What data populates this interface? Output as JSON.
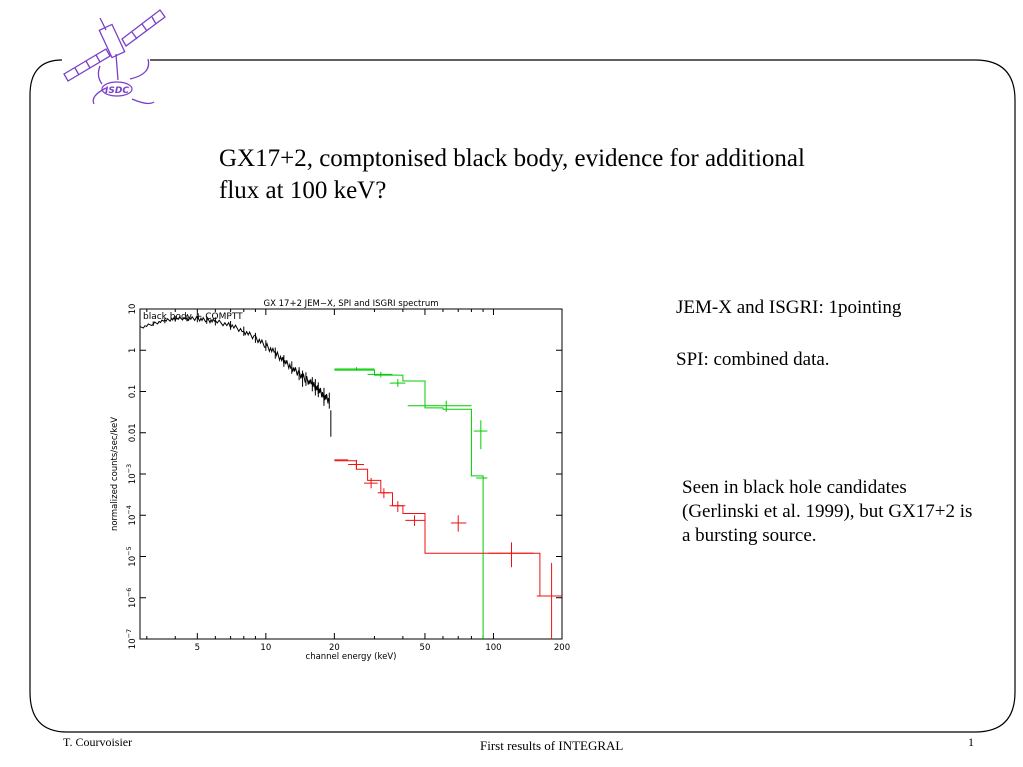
{
  "logo": {
    "label": "ISDC",
    "icon": "satellite-icon"
  },
  "slide": {
    "title": "GX17+2, comptonised black body, evidence for additional flux at 100 keV?",
    "notes": [
      "JEM-X and ISGRI: 1pointing",
      "SPI: combined data."
    ],
    "comment": "Seen in black hole candidates (Gerlinski et al. 1999), but GX17+2 is a bursting source."
  },
  "footer": {
    "author": "T. Courvoisier",
    "center": "First results of INTEGRAL",
    "page": "1"
  },
  "chart_data": {
    "type": "line",
    "title": "GX 17+2 JEM−X, SPI and ISGRI spectrum",
    "annotation": "black body + COMPTT",
    "xlabel": "channel energy (keV)",
    "ylabel": "normalized counts/sec/keV",
    "xscale": "log",
    "yscale": "log",
    "xlim": [
      2.8,
      200
    ],
    "ylim": [
      1e-07,
      10
    ],
    "x_ticks": [
      5,
      10,
      20,
      50,
      100,
      200
    ],
    "x_tick_labels": [
      "5",
      "10",
      "20",
      "50",
      "100",
      "200"
    ],
    "y_ticks": [
      10,
      1,
      0.1,
      0.01,
      0.001,
      0.0001,
      1e-05,
      1e-06,
      1e-07
    ],
    "y_tick_labels": [
      {
        "base": "10",
        "exp": ""
      },
      {
        "base": "1",
        "exp": ""
      },
      {
        "base": "0.1",
        "exp": ""
      },
      {
        "base": "0.01",
        "exp": ""
      },
      {
        "base": "10",
        "exp": "−3"
      },
      {
        "base": "10",
        "exp": "−4"
      },
      {
        "base": "10",
        "exp": "−5"
      },
      {
        "base": "10",
        "exp": "−6"
      },
      {
        "base": "10",
        "exp": "−7"
      }
    ],
    "series": [
      {
        "color": "#000000",
        "style": "data",
        "x": [
          2.8,
          3.2,
          3.6,
          4.0,
          4.5,
          5.0,
          5.5,
          6.0,
          7.0,
          8.0,
          9.0,
          10.0,
          11.0,
          12.0,
          13.0,
          14.0,
          15.0,
          16.0,
          17.0,
          18.0,
          19.0
        ],
        "y": [
          3.5,
          4.4,
          5.2,
          5.8,
          6.0,
          5.8,
          5.4,
          5.0,
          4.0,
          2.9,
          2.0,
          1.3,
          0.85,
          0.55,
          0.38,
          0.27,
          0.2,
          0.15,
          0.11,
          0.08,
          0.06
        ],
        "error_points": [
          {
            "x": 14.5,
            "y": 0.23,
            "dy": [
              0.13,
              0.32
            ]
          },
          {
            "x": 16.5,
            "y": 0.13,
            "dy": [
              0.08,
              0.2
            ]
          },
          {
            "x": 18.0,
            "y": 0.07,
            "dy": [
              0.045,
              0.1
            ]
          },
          {
            "x": 19.3,
            "y": 0.0175,
            "dy": [
              0.008,
              0.035
            ]
          }
        ]
      },
      {
        "color": "#00cc00",
        "style": "step",
        "step_x": [
          20,
          30,
          40,
          50,
          60,
          80,
          85,
          90
        ],
        "step_y": [
          0.33,
          0.25,
          0.18,
          0.04,
          0.037,
          0.0009,
          0.0009,
          1e-07
        ],
        "error_points": [
          {
            "x": 25,
            "y": 0.35,
            "dx": [
              20,
              30
            ],
            "dy": [
              0.32,
              0.39
            ]
          },
          {
            "x": 32,
            "y": 0.26,
            "dx": [
              28,
              36
            ],
            "dy": [
              0.22,
              0.3
            ]
          },
          {
            "x": 38,
            "y": 0.16,
            "dx": [
              35,
              41
            ],
            "dy": [
              0.13,
              0.2
            ]
          },
          {
            "x": 62,
            "y": 0.045,
            "dx": [
              42,
              80
            ],
            "dy": [
              0.032,
              0.06
            ]
          },
          {
            "x": 88,
            "y": 0.011,
            "dx": [
              82,
              94
            ],
            "dy": [
              0.004,
              0.02
            ]
          },
          {
            "x": 88,
            "y": 0.0008,
            "dx": [
              84,
              94
            ]
          }
        ]
      },
      {
        "color": "#ee1111",
        "style": "step",
        "step_x": [
          20,
          25,
          28,
          32,
          36,
          40,
          50,
          90,
          92,
          130,
          160,
          200
        ],
        "step_y": [
          0.0021,
          0.0013,
          0.0007,
          0.00035,
          0.00017,
          0.00011,
          1.2e-05,
          1.2e-05,
          1.2e-05,
          1.2e-05,
          1.1e-06,
          1.1e-06
        ],
        "error_points": [
          {
            "x": 21,
            "y": 0.0022,
            "dx": [
              20,
              23
            ]
          },
          {
            "x": 25,
            "y": 0.0017,
            "dx": [
              23,
              27
            ],
            "dy": [
              0.0013,
              0.0022
            ]
          },
          {
            "x": 29,
            "y": 0.0006,
            "dx": [
              27,
              31
            ],
            "dy": [
              0.00045,
              0.0008
            ]
          },
          {
            "x": 33,
            "y": 0.00035,
            "dx": [
              31,
              35
            ],
            "dy": [
              0.00026,
              0.00045
            ]
          },
          {
            "x": 38,
            "y": 0.00017,
            "dx": [
              35,
              41
            ],
            "dy": [
              0.00012,
              0.00022
            ]
          },
          {
            "x": 45,
            "y": 7.5e-05,
            "dx": [
              41,
              50
            ],
            "dy": [
              5.5e-05,
              0.0001
            ]
          },
          {
            "x": 70,
            "y": 6.5e-05,
            "dx": [
              65,
              76
            ],
            "dy": [
              4e-05,
              0.0001
            ]
          },
          {
            "x": 120,
            "y": 1.2e-05,
            "dx": [
              95,
              150
            ],
            "dy": [
              5.5e-06,
              2.2e-05
            ]
          },
          {
            "x": 180,
            "y": 1.1e-06,
            "dx": [
              155,
              200
            ],
            "dy": [
              1e-07,
              7e-06
            ]
          }
        ]
      }
    ]
  }
}
